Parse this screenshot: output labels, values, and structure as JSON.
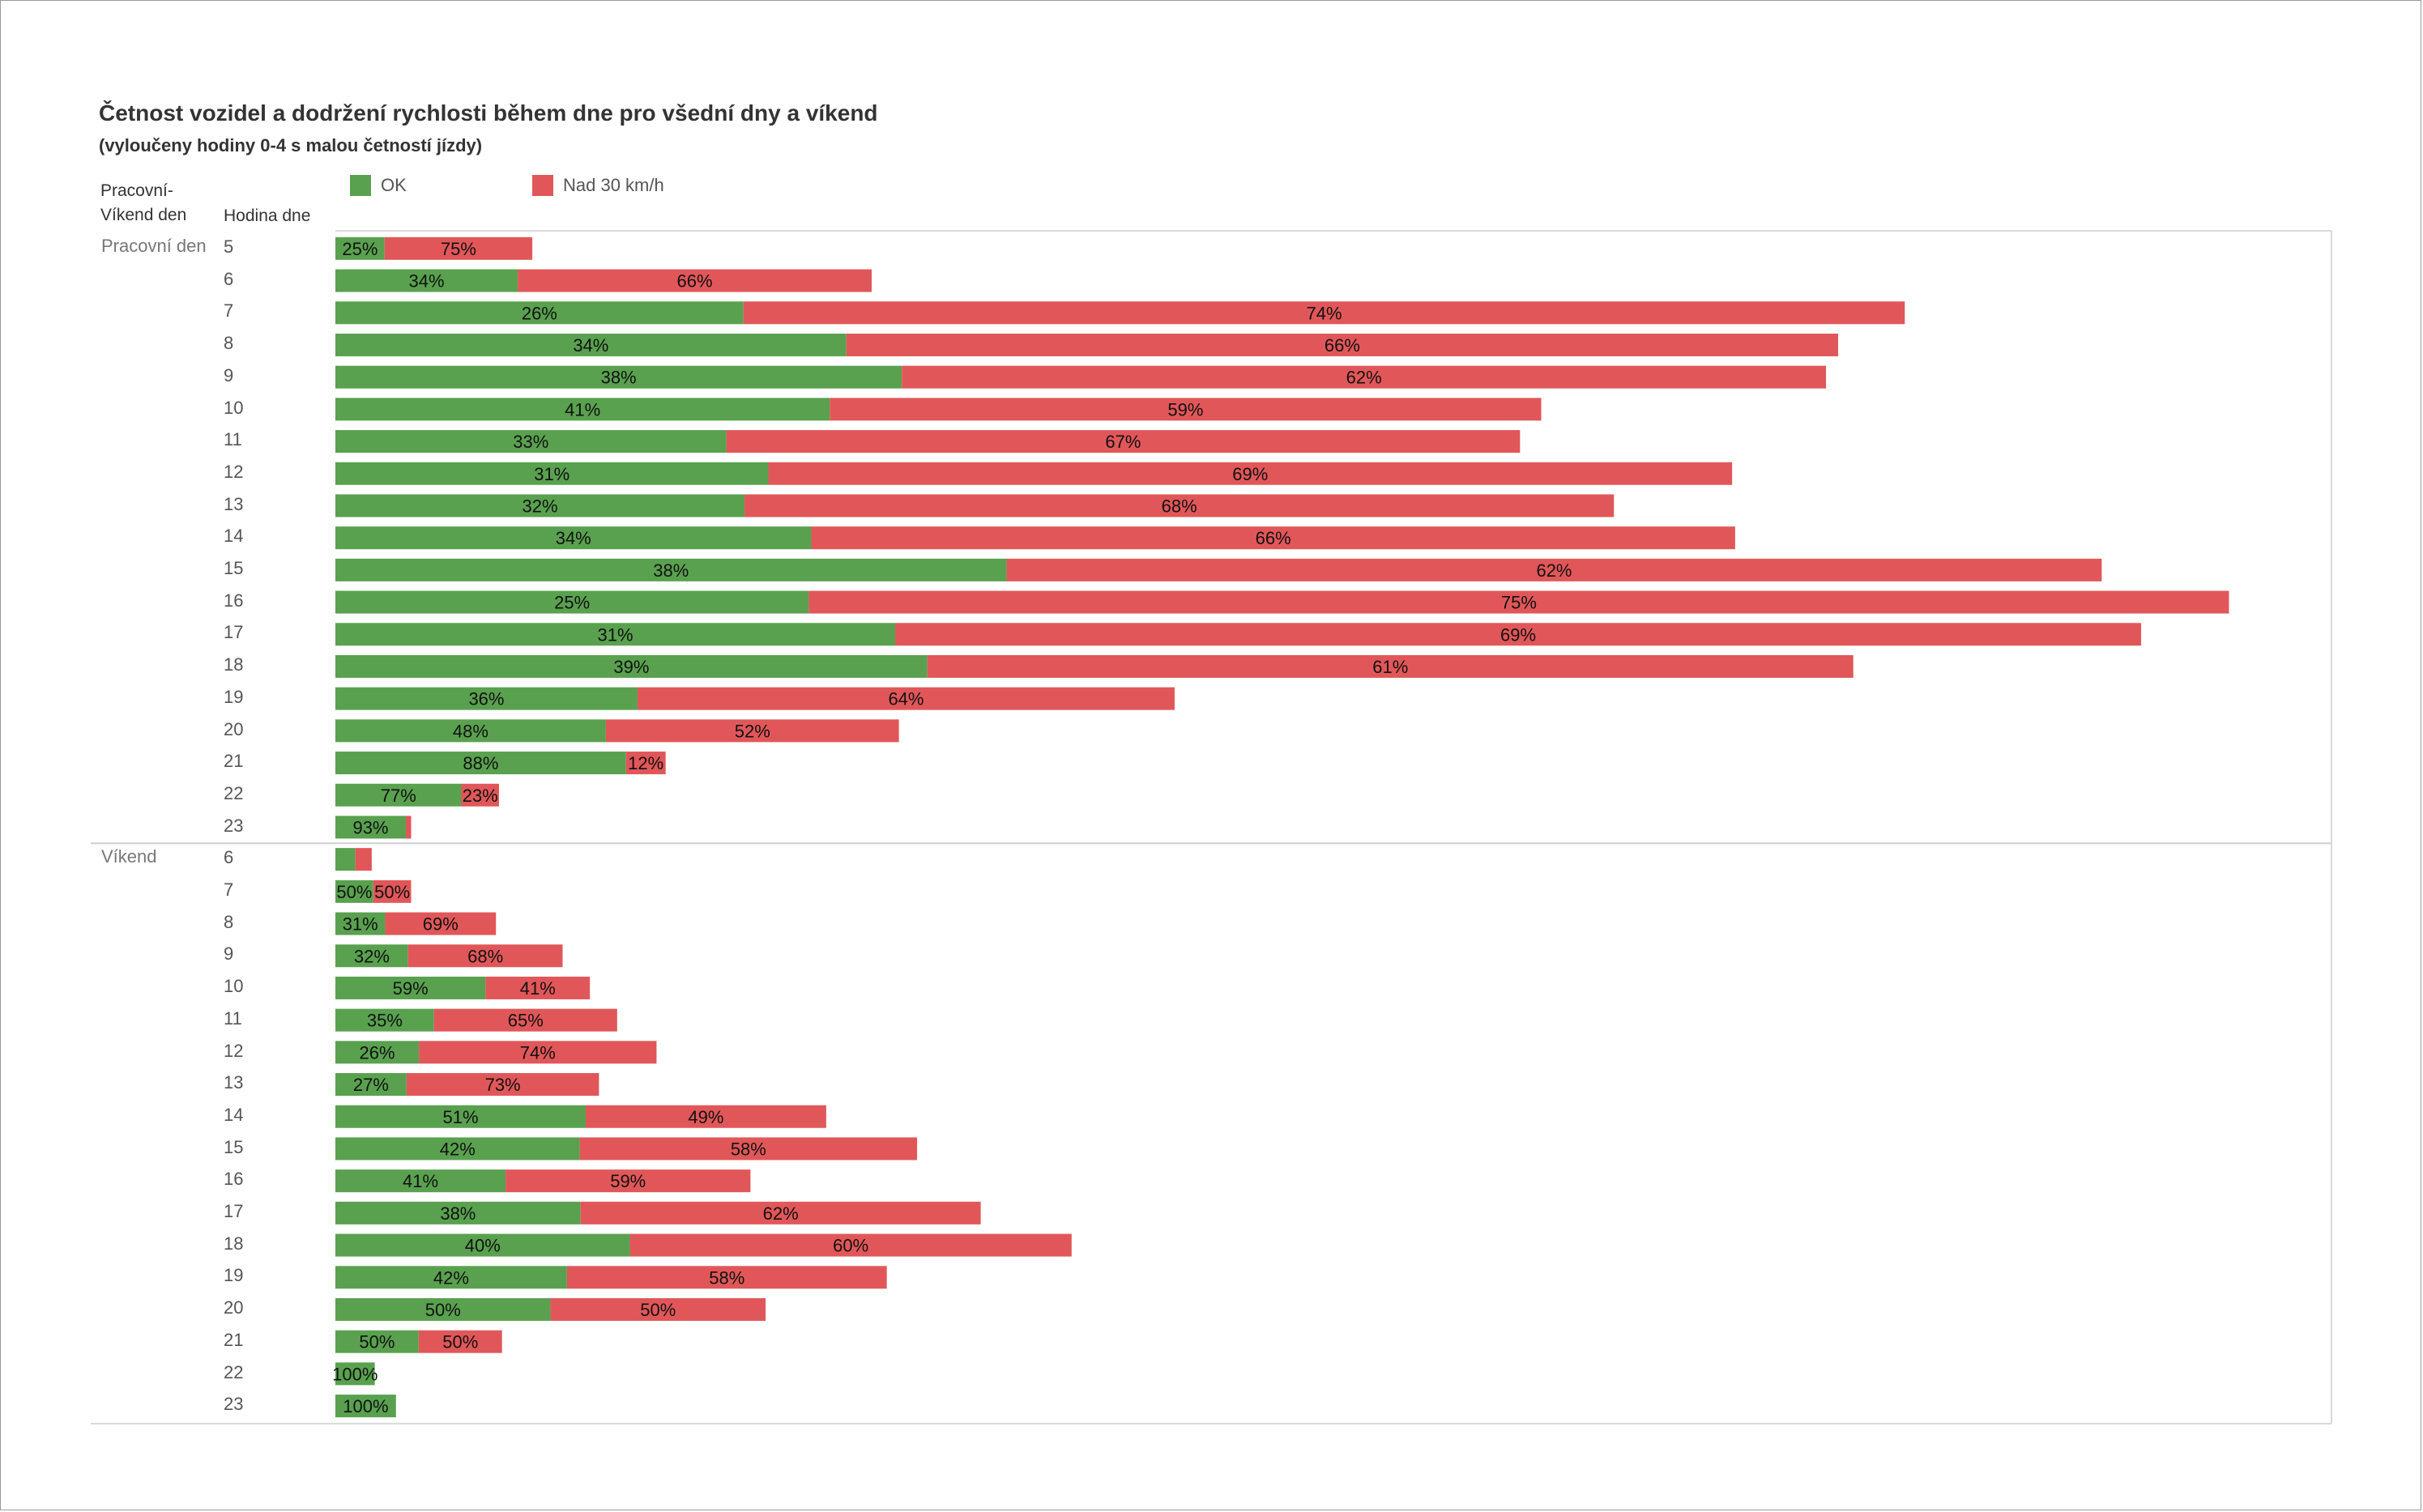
{
  "chart_data": {
    "type": "bar",
    "orientation": "horizontal",
    "stacked": true,
    "title": "Četnost vozidel a dodržení rychlosti během dne pro všední dny a víkend",
    "subtitle": "(vyloučeny hodiny 0-4 s malou četností jízdy)",
    "row_headers": [
      "Pracovní-\nVíkend den",
      "Hodina dne"
    ],
    "legend": [
      {
        "name": "OK",
        "color": "#59a14f"
      },
      {
        "name": "Nad 30 km/h",
        "color": "#e15759"
      }
    ],
    "legend_position": "top-left",
    "groups": [
      {
        "name": "Pracovní den",
        "rows": [
          {
            "hour": "5",
            "total": 65,
            "ok_label": "25%",
            "over_label": "75%"
          },
          {
            "hour": "6",
            "total": 177,
            "ok_label": "34%",
            "over_label": "66%"
          },
          {
            "hour": "7",
            "total": 518,
            "ok_label": "26%",
            "over_label": "74%"
          },
          {
            "hour": "8",
            "total": 496,
            "ok_label": "34%",
            "over_label": "66%"
          },
          {
            "hour": "9",
            "total": 492,
            "ok_label": "38%",
            "over_label": "62%"
          },
          {
            "hour": "10",
            "total": 398,
            "ok_label": "41%",
            "over_label": "59%"
          },
          {
            "hour": "11",
            "total": 391,
            "ok_label": "33%",
            "over_label": "67%"
          },
          {
            "hour": "12",
            "total": 461,
            "ok_label": "31%",
            "over_label": "69%"
          },
          {
            "hour": "13",
            "total": 422,
            "ok_label": "32%",
            "over_label": "68%"
          },
          {
            "hour": "14",
            "total": 462,
            "ok_label": "34%",
            "over_label": "66%"
          },
          {
            "hour": "15",
            "total": 583,
            "ok_label": "38%",
            "over_label": "62%"
          },
          {
            "hour": "16",
            "total": 625,
            "ok_label": "25%",
            "over_label": "75%"
          },
          {
            "hour": "17",
            "total": 596,
            "ok_label": "31%",
            "over_label": "69%"
          },
          {
            "hour": "18",
            "total": 501,
            "ok_label": "39%",
            "over_label": "61%"
          },
          {
            "hour": "19",
            "total": 277,
            "ok_label": "36%",
            "over_label": "64%"
          },
          {
            "hour": "20",
            "total": 186,
            "ok_label": "48%",
            "over_label": "52%"
          },
          {
            "hour": "21",
            "total": 109,
            "ok_label": "88%",
            "over_label": "12%"
          },
          {
            "hour": "22",
            "total": 54,
            "ok_label": "77%",
            "over_label": "23%"
          },
          {
            "hour": "23",
            "total": 25,
            "ok_label": "93%",
            "over_label": ""
          }
        ]
      },
      {
        "name": "Víkend",
        "rows": [
          {
            "hour": "6",
            "total": 12,
            "ok_pct": 55,
            "ok_label": "",
            "over_label": ""
          },
          {
            "hour": "7",
            "total": 25,
            "ok_label": "50%",
            "over_label": "50%"
          },
          {
            "hour": "8",
            "total": 53,
            "ok_label": "31%",
            "over_label": "69%"
          },
          {
            "hour": "9",
            "total": 75,
            "ok_label": "32%",
            "over_label": "68%"
          },
          {
            "hour": "10",
            "total": 84,
            "ok_label": "59%",
            "over_label": "41%"
          },
          {
            "hour": "11",
            "total": 93,
            "ok_label": "35%",
            "over_label": "65%"
          },
          {
            "hour": "12",
            "total": 106,
            "ok_label": "26%",
            "over_label": "74%"
          },
          {
            "hour": "13",
            "total": 87,
            "ok_label": "27%",
            "over_label": "73%"
          },
          {
            "hour": "14",
            "total": 162,
            "ok_label": "51%",
            "over_label": "49%"
          },
          {
            "hour": "15",
            "total": 192,
            "ok_label": "42%",
            "over_label": "58%"
          },
          {
            "hour": "16",
            "total": 137,
            "ok_label": "41%",
            "over_label": "59%"
          },
          {
            "hour": "17",
            "total": 213,
            "ok_label": "38%",
            "over_label": "62%"
          },
          {
            "hour": "18",
            "total": 243,
            "ok_label": "40%",
            "over_label": "60%"
          },
          {
            "hour": "19",
            "total": 182,
            "ok_label": "42%",
            "over_label": "58%"
          },
          {
            "hour": "20",
            "total": 142,
            "ok_label": "50%",
            "over_label": "50%"
          },
          {
            "hour": "21",
            "total": 55,
            "ok_label": "50%",
            "over_label": "50%"
          },
          {
            "hour": "22",
            "total": 13,
            "ok_label": "100%",
            "over_label": ""
          },
          {
            "hour": "23",
            "total": 20,
            "ok_label": "100%",
            "over_label": ""
          }
        ]
      }
    ],
    "xlim": [
      0,
      760
    ],
    "grid": false
  }
}
